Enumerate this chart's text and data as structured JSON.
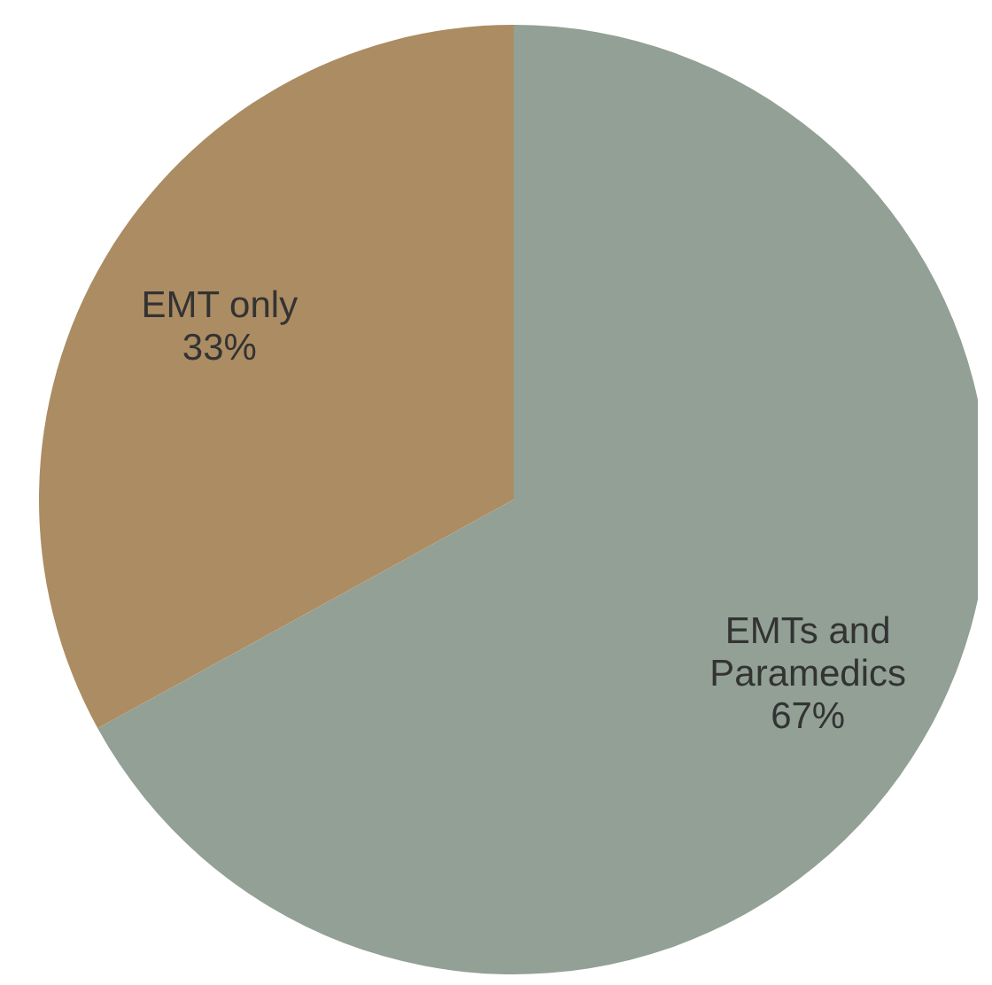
{
  "chart_data": {
    "type": "pie",
    "categories": [
      "EMTs and Paramedics",
      "EMT only"
    ],
    "values": [
      67,
      33
    ],
    "value_labels": [
      "67%",
      "33%"
    ],
    "colors": [
      "#92a096",
      "#ac8c62"
    ]
  }
}
